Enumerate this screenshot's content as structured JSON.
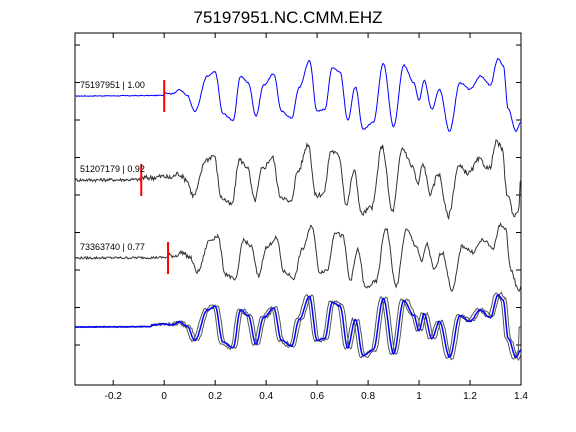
{
  "chart_data": {
    "type": "line",
    "title": "75197951.NC.CMM.EHZ",
    "xlim": [
      -0.35,
      1.4
    ],
    "x_ticks": [
      "-0.2",
      "0",
      "0.2",
      "0.4",
      "0.6",
      "0.8",
      "1",
      "1.2",
      "1.4"
    ],
    "x_tick_values": [
      -0.2,
      0,
      0.2,
      0.4,
      0.6,
      0.8,
      1.0,
      1.2,
      1.4
    ],
    "grid": false,
    "colors": {
      "master": "#0000ff",
      "other": "#333333",
      "pick": "#ff0000",
      "overlay_other": "#555555"
    },
    "traces": [
      {
        "label": "75197951 | 1.00",
        "event_id": "75197951",
        "cc": 1.0,
        "pick_time": 0.0,
        "color": "#0000ff"
      },
      {
        "label": "51207179 | 0.92",
        "event_id": "51207179",
        "cc": 0.92,
        "pick_time": -0.09,
        "color": "#333333"
      },
      {
        "label": "73363740 | 0.77",
        "event_id": "73363740",
        "cc": 0.77,
        "pick_time": 0.015,
        "color": "#333333"
      }
    ],
    "overlay": {
      "description_visible": false
    }
  }
}
